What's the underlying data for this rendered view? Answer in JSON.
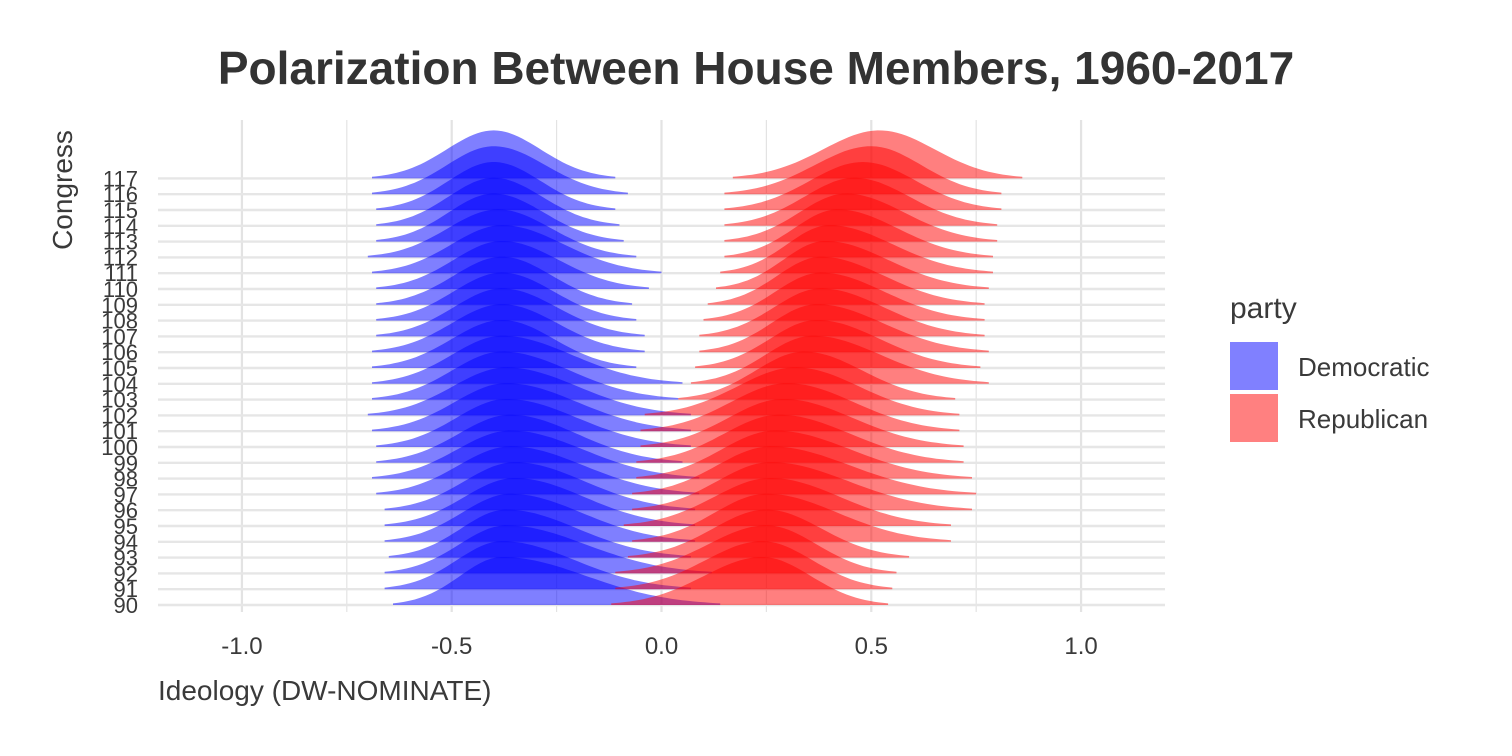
{
  "chart_data": {
    "type": "ridgeline",
    "title": "Polarization Between House Members, 1960-2017",
    "xlabel": "Ideology (DW-NOMINATE)",
    "ylabel": "Congress",
    "xlim": [
      -1.2,
      1.2
    ],
    "x_ticks": [
      -1.0,
      -0.5,
      0.0,
      0.5,
      1.0
    ],
    "x_tick_labels": [
      "-1.0",
      "-0.5",
      "0.0",
      "0.5",
      "1.0"
    ],
    "categories": [
      "90",
      "91",
      "92",
      "93",
      "94",
      "95",
      "96",
      "97",
      "98",
      "99",
      "100",
      "101",
      "102",
      "103",
      "104",
      "105",
      "106",
      "107",
      "108",
      "109",
      "110",
      "111",
      "112",
      "113",
      "114",
      "115",
      "116",
      "117"
    ],
    "grid": true,
    "legend": {
      "title": "party",
      "placement": "right",
      "items": [
        {
          "label": "Democratic",
          "color": "#8080FF"
        },
        {
          "label": "Republican",
          "color": "#FF8080"
        }
      ]
    },
    "series": [
      {
        "name": "Democratic",
        "color": "#0000FF",
        "opacity": 0.5,
        "modes": [
          -0.38,
          -0.38,
          -0.37,
          -0.37,
          -0.36,
          -0.35,
          -0.35,
          -0.36,
          -0.36,
          -0.36,
          -0.37,
          -0.37,
          -0.37,
          -0.38,
          -0.38,
          -0.38,
          -0.38,
          -0.38,
          -0.38,
          -0.38,
          -0.38,
          -0.38,
          -0.39,
          -0.4,
          -0.4,
          -0.4,
          -0.4,
          -0.4
        ],
        "ranges": [
          [
            -0.64,
            0.14
          ],
          [
            -0.66,
            0.07
          ],
          [
            -0.66,
            0.12
          ],
          [
            -0.65,
            0.07
          ],
          [
            -0.66,
            0.08
          ],
          [
            -0.66,
            0.08
          ],
          [
            -0.66,
            0.08
          ],
          [
            -0.68,
            0.09
          ],
          [
            -0.69,
            0.09
          ],
          [
            -0.68,
            0.05
          ],
          [
            -0.68,
            0.07
          ],
          [
            -0.69,
            0.07
          ],
          [
            -0.7,
            0.07
          ],
          [
            -0.69,
            0.04
          ],
          [
            -0.69,
            0.05
          ],
          [
            -0.69,
            -0.06
          ],
          [
            -0.69,
            -0.04
          ],
          [
            -0.68,
            -0.04
          ],
          [
            -0.68,
            -0.06
          ],
          [
            -0.68,
            -0.07
          ],
          [
            -0.68,
            -0.03
          ],
          [
            -0.69,
            0.0
          ],
          [
            -0.7,
            -0.06
          ],
          [
            -0.68,
            -0.09
          ],
          [
            -0.68,
            -0.1
          ],
          [
            -0.68,
            -0.11
          ],
          [
            -0.69,
            -0.08
          ],
          [
            -0.69,
            -0.11
          ]
        ]
      },
      {
        "name": "Republican",
        "color": "#FF0000",
        "opacity": 0.5,
        "modes": [
          0.24,
          0.24,
          0.25,
          0.25,
          0.25,
          0.26,
          0.26,
          0.26,
          0.27,
          0.28,
          0.29,
          0.3,
          0.32,
          0.34,
          0.36,
          0.37,
          0.37,
          0.38,
          0.38,
          0.38,
          0.39,
          0.4,
          0.42,
          0.44,
          0.46,
          0.48,
          0.5,
          0.52
        ],
        "ranges": [
          [
            -0.12,
            0.54
          ],
          [
            -0.11,
            0.55
          ],
          [
            -0.11,
            0.56
          ],
          [
            -0.08,
            0.59
          ],
          [
            -0.07,
            0.69
          ],
          [
            -0.09,
            0.69
          ],
          [
            -0.07,
            0.74
          ],
          [
            -0.07,
            0.75
          ],
          [
            -0.06,
            0.74
          ],
          [
            -0.06,
            0.72
          ],
          [
            -0.05,
            0.72
          ],
          [
            -0.05,
            0.71
          ],
          [
            -0.04,
            0.71
          ],
          [
            0.04,
            0.7
          ],
          [
            0.07,
            0.78
          ],
          [
            0.08,
            0.76
          ],
          [
            0.09,
            0.78
          ],
          [
            0.09,
            0.77
          ],
          [
            0.1,
            0.77
          ],
          [
            0.11,
            0.77
          ],
          [
            0.13,
            0.78
          ],
          [
            0.14,
            0.79
          ],
          [
            0.15,
            0.79
          ],
          [
            0.15,
            0.8
          ],
          [
            0.15,
            0.8
          ],
          [
            0.15,
            0.81
          ],
          [
            0.15,
            0.81
          ],
          [
            0.17,
            0.86
          ]
        ]
      }
    ]
  }
}
